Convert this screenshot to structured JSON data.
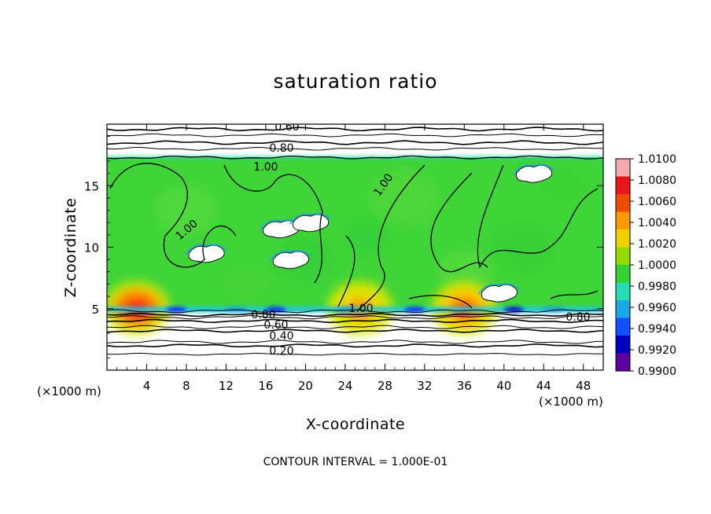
{
  "chart_data": {
    "type": "heatmap",
    "title": "saturation ratio",
    "xlabel": "X-coordinate",
    "ylabel": "Z-coordinate",
    "x_unit": "(×1000 m)",
    "z_unit": "(×1000 m)",
    "xlim": [
      0,
      50
    ],
    "ylim": [
      0,
      20
    ],
    "x_ticks": [
      "4",
      "8",
      "12",
      "16",
      "20",
      "24",
      "28",
      "32",
      "36",
      "40",
      "44",
      "48"
    ],
    "y_ticks": [
      "5",
      "10",
      "15"
    ],
    "note": "CONTOUR INTERVAL = 1.000E-01",
    "contour_interval": 0.1,
    "contour_labels": [
      "0.60",
      "0.80",
      "1.00",
      "1.00",
      "1.00",
      "1.00",
      "0.80",
      "0.80",
      "0.60",
      "0.40",
      "0.20"
    ],
    "colorbar": {
      "ticks": [
        "1.0100",
        "1.0080",
        "1.0060",
        "1.0040",
        "1.0020",
        "1.0000",
        "0.9980",
        "0.9960",
        "0.9940",
        "0.9920",
        "0.9900"
      ],
      "colors": [
        "#f2aab0",
        "#e81818",
        "#f24a00",
        "#ff9900",
        "#f0d200",
        "#96dc00",
        "#33d233",
        "#26dcb0",
        "#1aa6e8",
        "#1050ff",
        "#0000c0",
        "#5a00a0"
      ]
    },
    "layers": {
      "cloud_base_km": 4.8,
      "cloud_top_km": 17.3,
      "lower_contour_levels_km": [
        {
          "level": 0.2,
          "z": 2.0
        },
        {
          "level": 0.4,
          "z": 3.2
        },
        {
          "level": 0.6,
          "z": 4.0
        },
        {
          "level": 0.8,
          "z": 4.5
        }
      ],
      "upper_contour_levels_km": [
        {
          "level": 0.6,
          "z": 19.6
        },
        {
          "level": 0.8,
          "z": 18.5
        }
      ]
    },
    "warm_spots": [
      {
        "x": 3,
        "z": 5.5,
        "value": 1.008
      },
      {
        "x": 25.5,
        "z": 5.2,
        "value": 1.004
      },
      {
        "x": 36,
        "z": 5.2,
        "value": 1.006
      }
    ],
    "white_patches": [
      {
        "x": 17.5,
        "z": 11.5
      },
      {
        "x": 20.5,
        "z": 12.0
      },
      {
        "x": 10,
        "z": 9.5
      },
      {
        "x": 18.5,
        "z": 9.0
      },
      {
        "x": 39.5,
        "z": 6.3
      },
      {
        "x": 43,
        "z": 16.0
      }
    ]
  }
}
